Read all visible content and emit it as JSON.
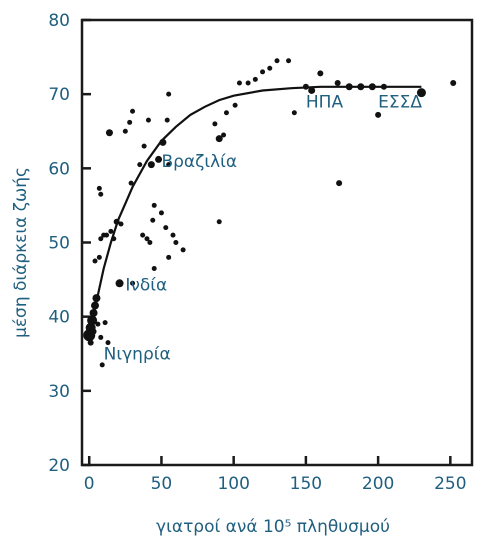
{
  "chart_data": {
    "type": "scatter",
    "title": "",
    "xlabel": "γιατροί ανά 10⁵ πληθυσμού",
    "ylabel": "μέση διάρκεια ζωής",
    "xlim": [
      -5,
      265
    ],
    "ylim": [
      20,
      80
    ],
    "x_ticks": [
      0,
      50,
      100,
      150,
      200,
      250
    ],
    "y_ticks": [
      20,
      30,
      40,
      50,
      60,
      70,
      80
    ],
    "grid": false,
    "legend": "none",
    "points": [
      {
        "x": 0,
        "y": 37.5,
        "size": 6
      },
      {
        "x": 1,
        "y": 38.5,
        "size": 5
      },
      {
        "x": 2,
        "y": 39.5,
        "size": 5
      },
      {
        "x": 3,
        "y": 40.5,
        "size": 4
      },
      {
        "x": 4,
        "y": 41.5,
        "size": 4
      },
      {
        "x": 5,
        "y": 42.5,
        "size": 4
      },
      {
        "x": 1,
        "y": 36.5,
        "size": 3
      },
      {
        "x": 3,
        "y": 38,
        "size": 3
      },
      {
        "x": 6,
        "y": 39,
        "size": 2.5
      },
      {
        "x": 8,
        "y": 37.2,
        "size": 2.5
      },
      {
        "x": 9,
        "y": 33.5,
        "size": 2.5
      },
      {
        "x": 11,
        "y": 39.2,
        "size": 2.5
      },
      {
        "x": 13,
        "y": 36.5,
        "size": 2.5
      },
      {
        "x": 21,
        "y": 44.5,
        "size": 4
      },
      {
        "x": 30,
        "y": 44.5,
        "size": 2.5
      },
      {
        "x": 4,
        "y": 47.5,
        "size": 2.5
      },
      {
        "x": 7,
        "y": 48,
        "size": 2.5
      },
      {
        "x": 8,
        "y": 50.5,
        "size": 2.5
      },
      {
        "x": 10,
        "y": 51,
        "size": 2.5
      },
      {
        "x": 12,
        "y": 51,
        "size": 2.5
      },
      {
        "x": 15,
        "y": 51.5,
        "size": 2.5
      },
      {
        "x": 17,
        "y": 50.5,
        "size": 2.5
      },
      {
        "x": 19,
        "y": 52.8,
        "size": 3
      },
      {
        "x": 22,
        "y": 52.5,
        "size": 2.5
      },
      {
        "x": 7,
        "y": 57.3,
        "size": 2.5
      },
      {
        "x": 8,
        "y": 56.5,
        "size": 2.5
      },
      {
        "x": 14,
        "y": 64.8,
        "size": 3.5
      },
      {
        "x": 25,
        "y": 65,
        "size": 2.5
      },
      {
        "x": 28,
        "y": 66.2,
        "size": 2.5
      },
      {
        "x": 30,
        "y": 67.7,
        "size": 2.5
      },
      {
        "x": 29,
        "y": 58,
        "size": 2.5
      },
      {
        "x": 35,
        "y": 60.5,
        "size": 2.5
      },
      {
        "x": 38,
        "y": 63,
        "size": 2.5
      },
      {
        "x": 41,
        "y": 66.5,
        "size": 2.5
      },
      {
        "x": 43,
        "y": 60.5,
        "size": 3.5
      },
      {
        "x": 48,
        "y": 61.2,
        "size": 3.5
      },
      {
        "x": 51,
        "y": 63.5,
        "size": 3.5
      },
      {
        "x": 54,
        "y": 66.5,
        "size": 2.5
      },
      {
        "x": 55,
        "y": 70,
        "size": 2.5
      },
      {
        "x": 55,
        "y": 60.5,
        "size": 2.5
      },
      {
        "x": 37,
        "y": 51,
        "size": 2.5
      },
      {
        "x": 40,
        "y": 50.5,
        "size": 2.5
      },
      {
        "x": 42,
        "y": 50,
        "size": 2.5
      },
      {
        "x": 44,
        "y": 53,
        "size": 2.5
      },
      {
        "x": 45,
        "y": 55,
        "size": 2.5
      },
      {
        "x": 50,
        "y": 54,
        "size": 2.5
      },
      {
        "x": 53,
        "y": 52,
        "size": 2.5
      },
      {
        "x": 45,
        "y": 46.5,
        "size": 2.5
      },
      {
        "x": 55,
        "y": 48,
        "size": 2.5
      },
      {
        "x": 60,
        "y": 50,
        "size": 2.5
      },
      {
        "x": 65,
        "y": 49,
        "size": 2.5
      },
      {
        "x": 58,
        "y": 51,
        "size": 2.5
      },
      {
        "x": 90,
        "y": 52.8,
        "size": 2.5
      },
      {
        "x": 90,
        "y": 64,
        "size": 3.5
      },
      {
        "x": 93,
        "y": 64.5,
        "size": 2.5
      },
      {
        "x": 87,
        "y": 66,
        "size": 2.5
      },
      {
        "x": 95,
        "y": 67.5,
        "size": 2.5
      },
      {
        "x": 101,
        "y": 68.5,
        "size": 2.5
      },
      {
        "x": 104,
        "y": 71.5,
        "size": 2.5
      },
      {
        "x": 110,
        "y": 71.5,
        "size": 2.5
      },
      {
        "x": 115,
        "y": 72,
        "size": 2.5
      },
      {
        "x": 120,
        "y": 73,
        "size": 2.5
      },
      {
        "x": 125,
        "y": 73.5,
        "size": 2.5
      },
      {
        "x": 130,
        "y": 74.5,
        "size": 2.5
      },
      {
        "x": 138,
        "y": 74.5,
        "size": 2.5
      },
      {
        "x": 142,
        "y": 67.5,
        "size": 2.5
      },
      {
        "x": 150,
        "y": 71,
        "size": 3
      },
      {
        "x": 154,
        "y": 70.5,
        "size": 3.5
      },
      {
        "x": 160,
        "y": 72.8,
        "size": 3
      },
      {
        "x": 172,
        "y": 71.5,
        "size": 3
      },
      {
        "x": 180,
        "y": 71,
        "size": 3.5
      },
      {
        "x": 188,
        "y": 71,
        "size": 3.5
      },
      {
        "x": 196,
        "y": 71,
        "size": 3.5
      },
      {
        "x": 204,
        "y": 71,
        "size": 3
      },
      {
        "x": 200,
        "y": 67.2,
        "size": 3
      },
      {
        "x": 173,
        "y": 58,
        "size": 3
      },
      {
        "x": 230,
        "y": 70.2,
        "size": 4.5
      },
      {
        "x": 252,
        "y": 71.5,
        "size": 3
      }
    ],
    "trend": {
      "type": "saturating",
      "x": [
        0,
        5,
        10,
        15,
        20,
        30,
        40,
        50,
        60,
        70,
        80,
        90,
        100,
        120,
        140,
        160,
        180,
        200,
        230
      ],
      "y": [
        37.5,
        42.0,
        46.5,
        50.0,
        53.0,
        57.5,
        61.0,
        63.7,
        65.6,
        67.2,
        68.3,
        69.2,
        69.8,
        70.5,
        70.8,
        71.0,
        71.0,
        71.0,
        71.0
      ]
    },
    "annotations": [
      {
        "label": "Νιγηρία",
        "x": 10,
        "y": 34.2
      },
      {
        "label": "Ινδία",
        "x": 25,
        "y": 43.5
      },
      {
        "label": "Βραζιλία",
        "x": 50,
        "y": 60.2
      },
      {
        "label": "ΗΠΑ",
        "x": 150,
        "y": 68.2
      },
      {
        "label": "ΕΣΣΔ",
        "x": 200,
        "y": 68.2
      }
    ]
  }
}
